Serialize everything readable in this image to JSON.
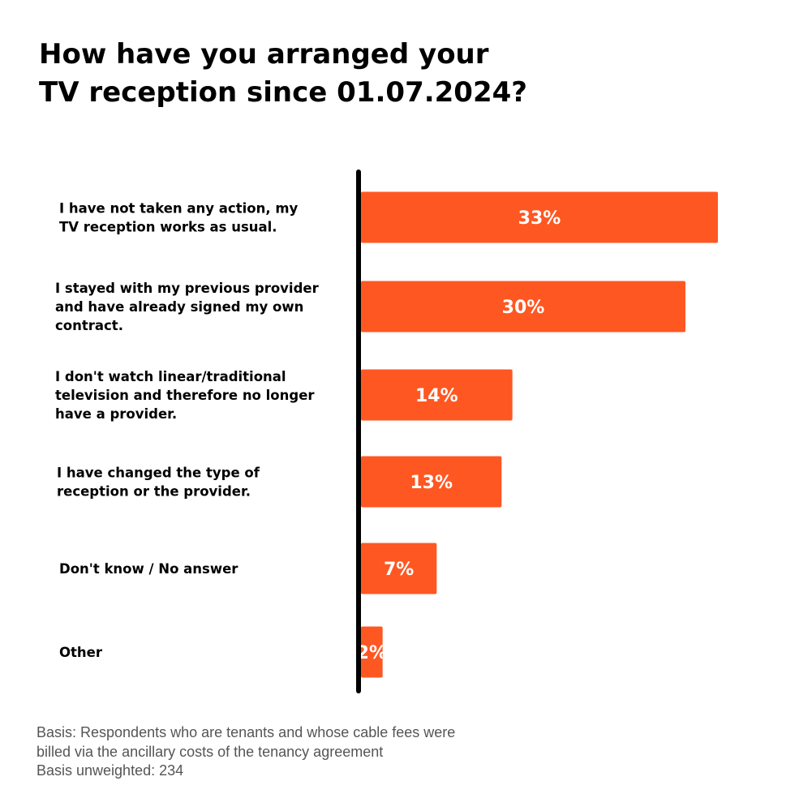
{
  "title_lines": [
    "How have you arranged your",
    "TV reception since 01.07.2024?"
  ],
  "chart_data": {
    "type": "bar",
    "orientation": "horizontal",
    "categories": [
      [
        "I have not taken any action, my",
        "TV reception works as usual."
      ],
      [
        "I stayed with my previous provider",
        "and have already signed my own",
        "contract."
      ],
      [
        "I don't watch linear/traditional",
        "television and therefore no longer",
        "have a provider."
      ],
      [
        "I have changed the type of",
        "reception or the provider."
      ],
      [
        "Don't know / No answer"
      ],
      [
        "Other"
      ]
    ],
    "values": [
      33,
      30,
      14,
      13,
      7,
      2
    ],
    "value_labels": [
      "33%",
      "30%",
      "14%",
      "13%",
      "7%",
      "2%"
    ],
    "bar_color": "#FF5722",
    "axis_color": "#000000",
    "value_label_color": "#FFFFFF",
    "grid": false,
    "xlim": [
      0,
      33
    ]
  },
  "footnote_lines": [
    "Basis: Respondents who are tenants and whose cable fees were",
    "billed via the ancillary costs of the tenancy agreement",
    "Basis unweighted: 234"
  ]
}
